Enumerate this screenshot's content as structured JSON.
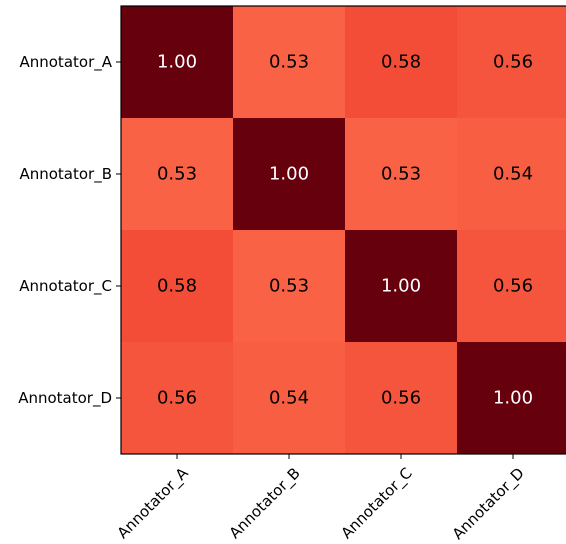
{
  "chart_data": {
    "type": "heatmap",
    "title": "",
    "xlabel": "",
    "ylabel": "",
    "x_labels": [
      "Annotator_A",
      "Annotator_B",
      "Annotator_C",
      "Annotator_D"
    ],
    "y_labels": [
      "Annotator_A",
      "Annotator_B",
      "Annotator_C",
      "Annotator_D"
    ],
    "values": [
      [
        1.0,
        0.53,
        0.58,
        0.56
      ],
      [
        0.53,
        1.0,
        0.53,
        0.54
      ],
      [
        0.58,
        0.53,
        1.0,
        0.56
      ],
      [
        0.56,
        0.54,
        0.56,
        1.0
      ]
    ],
    "value_format": "2 decimals",
    "colormap": "Reds",
    "colors": {
      "diagonal": "#67000d",
      "low": "#f9644e",
      "high": "#f44d3a",
      "annotation_dark_bg": "#ffffff",
      "annotation_light_bg": "#000000"
    },
    "grid": false,
    "legend": "none",
    "x_tick_rotation": 45
  }
}
